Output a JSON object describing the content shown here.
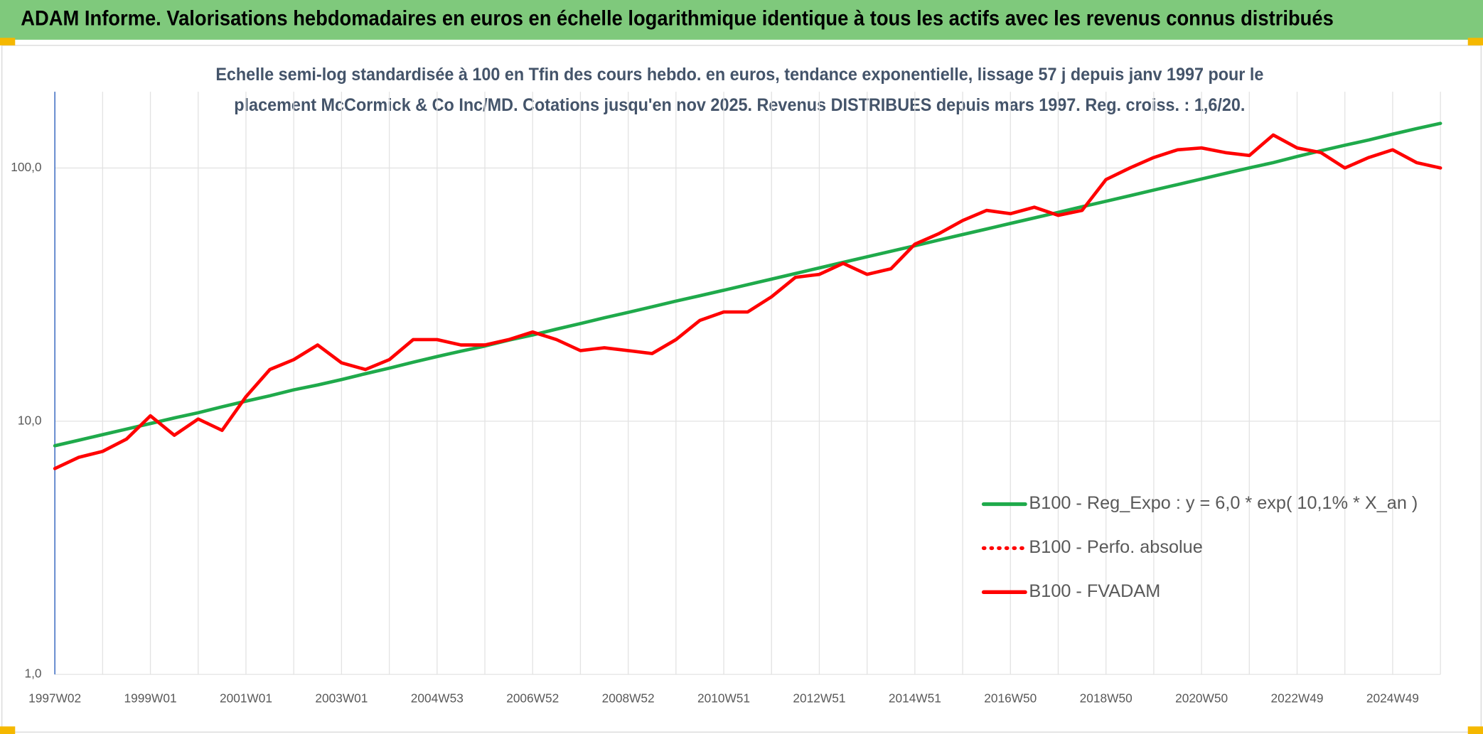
{
  "header": {
    "title": "ADAM Informe. Valorisations hebdomadaires en euros en échelle logarithmique identique à tous les actifs avec les revenus connus distribués"
  },
  "chart_data": {
    "type": "line",
    "title": [
      "Echelle semi-log standardisée à 100 en Tfin des cours hebdo. en euros, tendance exponentielle, lissage 57 j depuis janv 1997 pour le",
      "placement McCormick & Co Inc/MD. Cotations jusqu'en nov 2025. Revenus DISTRIBUES depuis mars 1997. Reg. croiss. : 1,6/20."
    ],
    "log_scale": true,
    "grid": true,
    "legend": "right",
    "ylim": [
      1,
      200
    ],
    "yticks": [
      {
        "value": 1,
        "label": "1,0"
      },
      {
        "value": 10,
        "label": "10,0"
      },
      {
        "value": 100,
        "label": "100,0"
      }
    ],
    "categories": [
      "1997W02",
      null,
      null,
      null,
      "1999W01",
      null,
      null,
      null,
      "2001W01",
      null,
      null,
      null,
      "2003W01",
      null,
      null,
      null,
      "2004W53",
      null,
      null,
      null,
      "2006W52",
      null,
      null,
      null,
      "2008W52",
      null,
      null,
      null,
      "2010W51",
      null,
      null,
      null,
      "2012W51",
      null,
      null,
      null,
      "2014W51",
      null,
      null,
      null,
      "2016W50",
      null,
      null,
      null,
      "2018W50",
      null,
      null,
      null,
      "2020W50",
      null,
      null,
      null,
      "2022W49",
      null,
      null,
      null,
      "2024W49",
      null,
      null
    ],
    "series": [
      {
        "name": "B100 - Reg_Expo : y = 6,0 * exp( 10,1% *  X_an )",
        "color": "#1faa4b",
        "style": "solid",
        "values": [
          8.0,
          8.41,
          8.85,
          9.31,
          9.79,
          10.3,
          10.8,
          11.4,
          12.0,
          12.6,
          13.3,
          13.9,
          14.6,
          15.4,
          16.2,
          17.1,
          18.0,
          18.9,
          19.8,
          20.9,
          21.9,
          23.1,
          24.3,
          25.6,
          26.9,
          28.3,
          29.8,
          31.3,
          32.9,
          34.6,
          36.4,
          38.3,
          40.3,
          42.4,
          44.6,
          46.9,
          49.3,
          51.9,
          54.6,
          57.4,
          60.4,
          63.5,
          66.8,
          70.3,
          73.9,
          77.7,
          81.8,
          86.0,
          90.5,
          95.2,
          100.1,
          105,
          111,
          117,
          123,
          129,
          136,
          143,
          150
        ]
      },
      {
        "name": "B100 - Perfo. absolue",
        "color": "#ff0000",
        "style": "dotted",
        "values": [
          6.5,
          7.2,
          7.6,
          8.5,
          10.5,
          8.8,
          10.2,
          9.2,
          12.5,
          16,
          17.5,
          20,
          17,
          16,
          17.5,
          21,
          21,
          20,
          20,
          21,
          22.5,
          21,
          19,
          19.5,
          19,
          18.5,
          21,
          25,
          27,
          27,
          31,
          37,
          38,
          42,
          38,
          40,
          50,
          55,
          62,
          68,
          66,
          70,
          65,
          68,
          90,
          100,
          110,
          118,
          120,
          115,
          112,
          135,
          120,
          115,
          100,
          110,
          118,
          105,
          100
        ]
      },
      {
        "name": "B100 - FVADAM",
        "color": "#ff0000",
        "style": "solid",
        "values": [
          6.5,
          7.2,
          7.6,
          8.5,
          10.5,
          8.8,
          10.2,
          9.2,
          12.5,
          16,
          17.5,
          20,
          17,
          16,
          17.5,
          21,
          21,
          20,
          20,
          21,
          22.5,
          21,
          19,
          19.5,
          19,
          18.5,
          21,
          25,
          27,
          27,
          31,
          37,
          38,
          42,
          38,
          40,
          50,
          55,
          62,
          68,
          66,
          70,
          65,
          68,
          90,
          100,
          110,
          118,
          120,
          115,
          112,
          135,
          120,
          115,
          100,
          110,
          118,
          105,
          100
        ]
      }
    ]
  }
}
